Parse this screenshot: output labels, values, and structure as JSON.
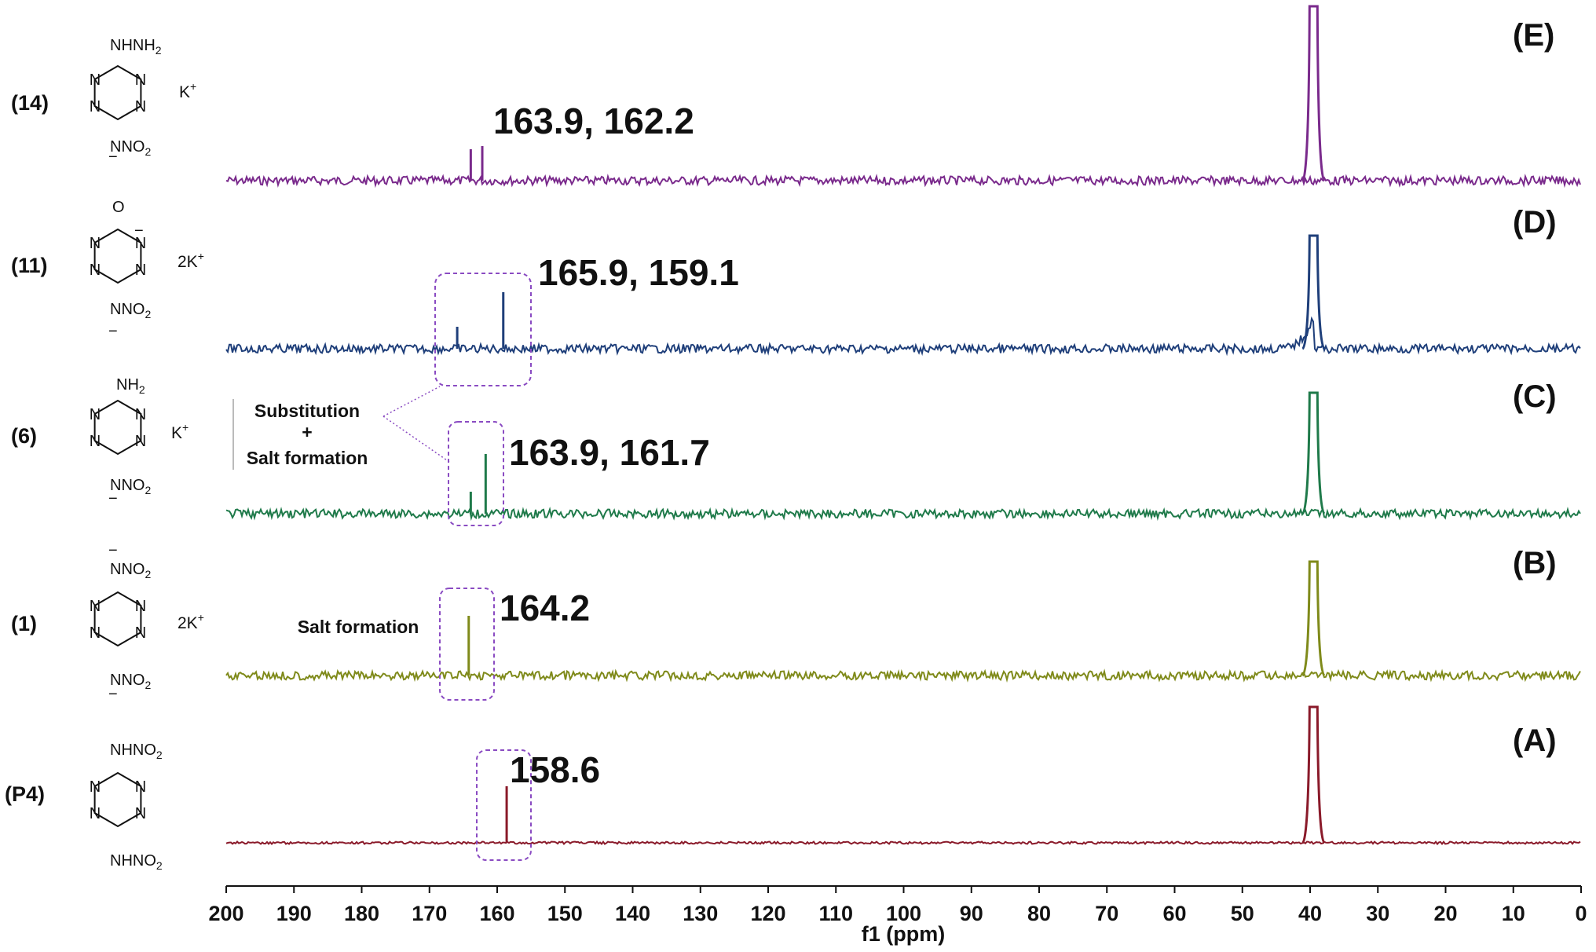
{
  "chart_data": {
    "type": "line",
    "xlabel": "f1 (ppm)",
    "ylabel": "",
    "xlim": [
      200,
      0
    ],
    "x_ticks": [
      200,
      190,
      180,
      170,
      160,
      150,
      140,
      130,
      120,
      110,
      100,
      90,
      80,
      70,
      60,
      50,
      40,
      30,
      20,
      10,
      0
    ],
    "grid": false,
    "solvent_peak_ppm": 39.5,
    "series": [
      {
        "name": "(E)",
        "compound": "(14)",
        "color": "#7a2a8c",
        "peaks_ppm": [
          163.9,
          162.2
        ],
        "peak_label": "163.9, 162.2",
        "peak_heights": [
          0.5,
          0.55
        ]
      },
      {
        "name": "(D)",
        "compound": "(11)",
        "color": "#1f3f7a",
        "peaks_ppm": [
          165.9,
          159.1
        ],
        "peak_label": "165.9, 159.1",
        "peak_heights": [
          0.35,
          0.9
        ]
      },
      {
        "name": "(C)",
        "compound": "(6)",
        "color": "#1f7a4a",
        "peaks_ppm": [
          163.9,
          161.7
        ],
        "peak_label": "163.9, 161.7",
        "peak_heights": [
          0.35,
          0.95
        ]
      },
      {
        "name": "(B)",
        "compound": "(1)",
        "color": "#7f8a1a",
        "peaks_ppm": [
          164.2
        ],
        "peak_label": "164.2",
        "peak_heights": [
          0.95
        ]
      },
      {
        "name": "(A)",
        "compound": "(P4)",
        "color": "#8a1a2a",
        "peaks_ppm": [
          158.6
        ],
        "peak_label": "158.6",
        "peak_heights": [
          0.9
        ]
      }
    ],
    "annotations": [
      {
        "lines": [
          "Substitution",
          "+",
          "Salt formation"
        ],
        "targets": [
          "(D)",
          "(C)"
        ]
      },
      {
        "lines": [
          "Salt formation"
        ],
        "targets": [
          "(B)"
        ]
      }
    ]
  },
  "structures": {
    "s14": {
      "id": "(14)",
      "top": "NHNH",
      "top_sub": "2",
      "ion": "K",
      "bottom": "NNO",
      "bottom_sub": "2"
    },
    "s11": {
      "id": "(11)",
      "top": "O",
      "ion": "2K",
      "bottom": "NNO",
      "bottom_sub": "2"
    },
    "s6": {
      "id": "(6)",
      "top": "NH",
      "top_sub": "2",
      "ion": "K",
      "bottom": "NNO",
      "bottom_sub": "2"
    },
    "s1": {
      "id": "(1)",
      "top": "NNO",
      "top_sub": "2",
      "ion": "2K",
      "bottom": "NNO",
      "bottom_sub": "2"
    },
    "sP4": {
      "id": "(P4)",
      "top": "NHNO",
      "top_sub": "2",
      "bottom": "NHNO",
      "bottom_sub": "2"
    },
    "ring_N": "N",
    "plus": "+",
    "minus": "−"
  }
}
